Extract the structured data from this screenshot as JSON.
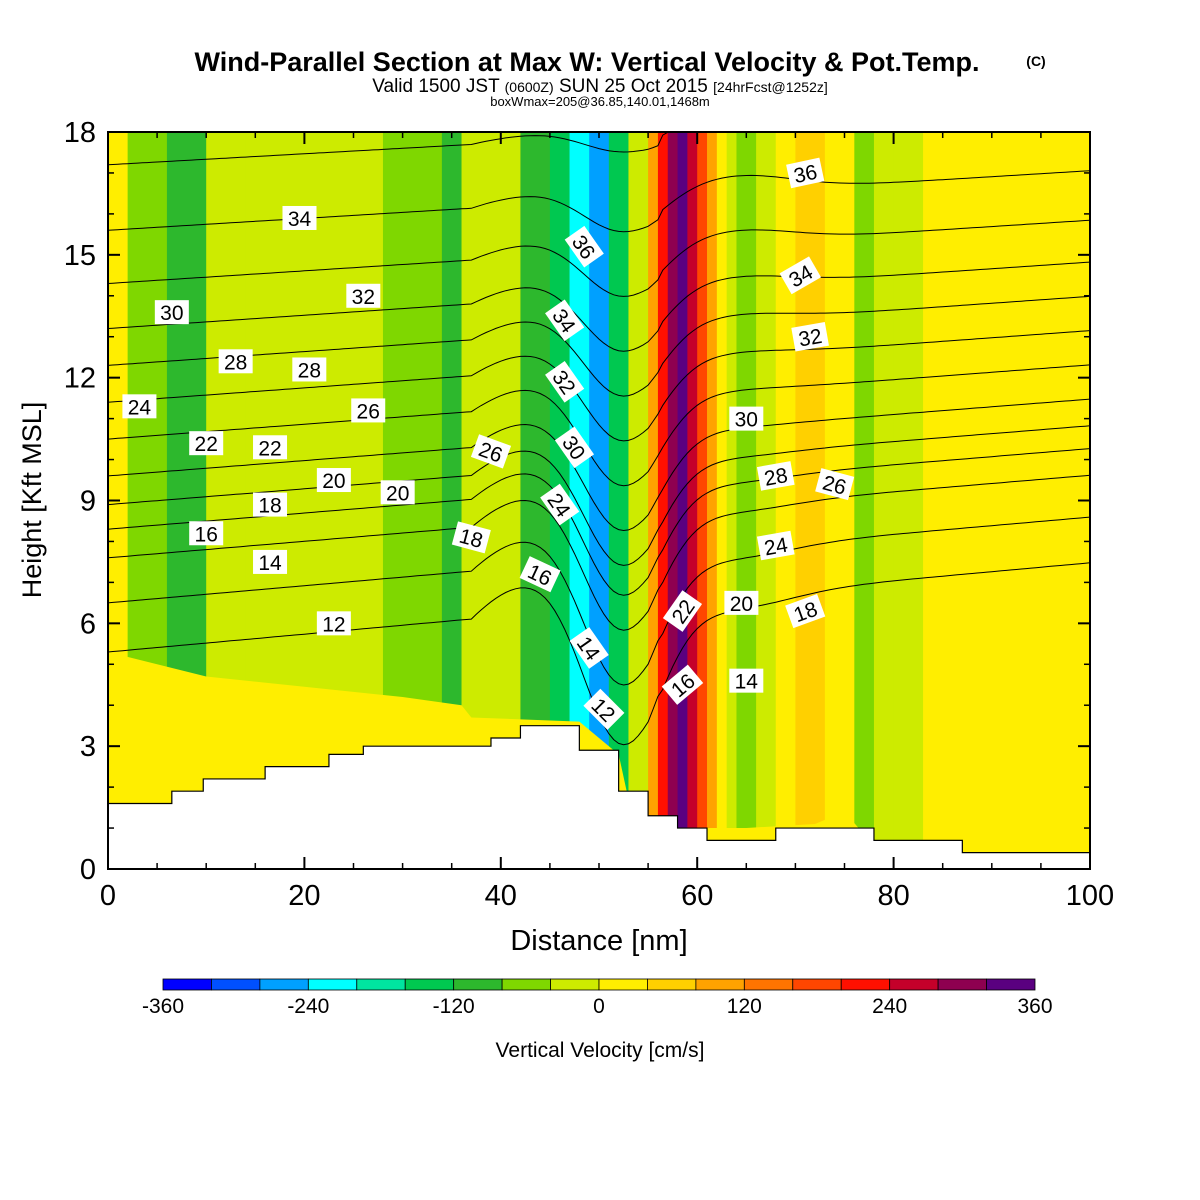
{
  "header": {
    "title": "Wind-Parallel Section at Max W: Vertical Velocity & Pot.Temp.",
    "copyright": "(C)",
    "valid": {
      "pre": "Valid 1500 JST",
      "utc": "(0600Z)",
      "date": "SUN 25 Oct 2015",
      "fcst": "[24hrFcst@1252z]"
    },
    "box": "boxWmax=205@36.85,140.01,1468m"
  },
  "chart_data": {
    "type": "heatmap",
    "xlabel": "Distance [nm]",
    "ylabel": "Height [Kft MSL]",
    "xlim": [
      0,
      100
    ],
    "ylim": [
      0,
      18
    ],
    "xticks": [
      "0",
      "20",
      "40",
      "60",
      "80",
      "100"
    ],
    "yticks": [
      "0",
      "3",
      "6",
      "9",
      "12",
      "15",
      "18"
    ],
    "colorbar": {
      "label": "Vertical Velocity [cm/s]",
      "levels": [
        -360,
        -320,
        -280,
        -240,
        -200,
        -160,
        -120,
        -80,
        -40,
        0,
        40,
        80,
        120,
        160,
        200,
        240,
        280,
        320,
        360
      ],
      "colors": [
        "#0000ff",
        "#0050ff",
        "#00a0ff",
        "#00ffff",
        "#00e5a0",
        "#00c850",
        "#2db82d",
        "#7fd700",
        "#cdeb00",
        "#ffee00",
        "#ffd000",
        "#ffa200",
        "#ff7400",
        "#ff4600",
        "#ff1000",
        "#c4002a",
        "#8e0050",
        "#5a0080"
      ],
      "ticks": [
        "-360",
        "-240",
        "-120",
        "0",
        "120",
        "240",
        "360"
      ]
    },
    "w_columns": [
      {
        "x0": 0,
        "x1": 2,
        "w": 10
      },
      {
        "x0": 2,
        "x1": 6,
        "w": -50
      },
      {
        "x0": 6,
        "x1": 10,
        "w": -90
      },
      {
        "x0": 10,
        "x1": 14,
        "w": -40
      },
      {
        "x0": 14,
        "x1": 28,
        "w": -20
      },
      {
        "x0": 28,
        "x1": 34,
        "w": -60
      },
      {
        "x0": 34,
        "x1": 36,
        "w": -90
      },
      {
        "x0": 36,
        "x1": 42,
        "w": -40
      },
      {
        "x0": 42,
        "x1": 45,
        "w": -100
      },
      {
        "x0": 45,
        "x1": 47,
        "w": -160
      },
      {
        "x0": 47,
        "x1": 49,
        "w": -230
      },
      {
        "x0": 49,
        "x1": 51,
        "w": -250
      },
      {
        "x0": 51,
        "x1": 53,
        "w": -150
      },
      {
        "x0": 53,
        "x1": 55,
        "w": -40
      },
      {
        "x0": 55,
        "x1": 56,
        "w": 80
      },
      {
        "x0": 56,
        "x1": 57,
        "w": 200
      },
      {
        "x0": 57,
        "x1": 58,
        "w": 280
      },
      {
        "x0": 58,
        "x1": 59,
        "w": 330
      },
      {
        "x0": 59,
        "x1": 60,
        "w": 260
      },
      {
        "x0": 60,
        "x1": 61,
        "w": 180
      },
      {
        "x0": 61,
        "x1": 62,
        "w": 110
      },
      {
        "x0": 62,
        "x1": 63,
        "w": 30
      },
      {
        "x0": 63,
        "x1": 64,
        "w": -30
      },
      {
        "x0": 64,
        "x1": 66,
        "w": -70
      },
      {
        "x0": 66,
        "x1": 68,
        "w": -10
      },
      {
        "x0": 68,
        "x1": 70,
        "w": 30
      },
      {
        "x0": 70,
        "x1": 73,
        "w": 70
      },
      {
        "x0": 73,
        "x1": 76,
        "w": 20
      },
      {
        "x0": 76,
        "x1": 78,
        "w": -60
      },
      {
        "x0": 78,
        "x1": 80,
        "w": -30
      },
      {
        "x0": 80,
        "x1": 83,
        "w": -10
      },
      {
        "x0": 83,
        "x1": 87,
        "w": 10
      },
      {
        "x0": 87,
        "x1": 93,
        "w": 20
      },
      {
        "x0": 93,
        "x1": 98,
        "w": 10
      },
      {
        "x0": 98,
        "x1": 100,
        "w": 30
      }
    ],
    "low_level_updraft": [
      [
        0,
        0
      ],
      [
        0,
        5.3
      ],
      [
        10,
        4.7
      ],
      [
        30,
        4.2
      ],
      [
        36,
        4.0
      ],
      [
        37,
        3.7
      ],
      [
        48,
        3.6
      ],
      [
        52,
        2.8
      ],
      [
        53,
        1.7
      ],
      [
        55,
        1.2
      ],
      [
        58,
        1.0
      ],
      [
        65,
        1.0
      ],
      [
        72,
        1.1
      ],
      [
        75,
        1.4
      ],
      [
        80,
        0
      ],
      [
        0,
        0
      ]
    ],
    "terrain": [
      [
        0,
        1.6
      ],
      [
        6.5,
        1.6
      ],
      [
        6.5,
        1.9
      ],
      [
        9.7,
        1.9
      ],
      [
        9.7,
        2.2
      ],
      [
        16,
        2.2
      ],
      [
        16,
        2.5
      ],
      [
        22.5,
        2.5
      ],
      [
        22.5,
        2.8
      ],
      [
        26,
        2.8
      ],
      [
        26,
        3.0
      ],
      [
        39,
        3.0
      ],
      [
        39,
        3.2
      ],
      [
        42,
        3.2
      ],
      [
        42,
        3.5
      ],
      [
        48,
        3.5
      ],
      [
        48,
        2.9
      ],
      [
        52,
        2.9
      ],
      [
        52,
        1.9
      ],
      [
        55,
        1.9
      ],
      [
        55,
        1.3
      ],
      [
        58,
        1.3
      ],
      [
        58,
        1.0
      ],
      [
        61,
        1.0
      ],
      [
        61,
        0.7
      ],
      [
        68,
        0.7
      ],
      [
        68,
        1.0
      ],
      [
        78,
        1.0
      ],
      [
        78,
        0.7
      ],
      [
        87,
        0.7
      ],
      [
        87,
        0.4
      ],
      [
        100,
        0.4
      ]
    ],
    "theta_contours": [
      {
        "label": "12",
        "y_left": 5.3
      },
      {
        "label": "14",
        "y_left": 6.5
      },
      {
        "label": "16",
        "y_left": 7.6
      },
      {
        "label": "18",
        "y_left": 8.3
      },
      {
        "label": "20",
        "y_left": 8.9
      },
      {
        "label": "22",
        "y_left": 9.6
      },
      {
        "label": "24",
        "y_left": 10.5
      },
      {
        "label": "26",
        "y_left": 11.4
      },
      {
        "label": "28",
        "y_left": 12.3
      },
      {
        "label": "30",
        "y_left": 13.2
      },
      {
        "label": "32",
        "y_left": 14.3
      },
      {
        "label": "34",
        "y_left": 15.6
      },
      {
        "label": "36",
        "y_left": 17.2
      }
    ],
    "contour_labels": [
      {
        "text": "34",
        "x": 19.5,
        "y": 15.9,
        "rot": 0
      },
      {
        "text": "32",
        "x": 26,
        "y": 14.0,
        "rot": 0
      },
      {
        "text": "30",
        "x": 6.5,
        "y": 13.6,
        "rot": 0
      },
      {
        "text": "28",
        "x": 13,
        "y": 12.4,
        "rot": 0
      },
      {
        "text": "28",
        "x": 20.5,
        "y": 12.2,
        "rot": 0
      },
      {
        "text": "26",
        "x": 26.5,
        "y": 11.2,
        "rot": 0
      },
      {
        "text": "24",
        "x": 3.2,
        "y": 11.3,
        "rot": 0
      },
      {
        "text": "22",
        "x": 10,
        "y": 10.4,
        "rot": 0
      },
      {
        "text": "22",
        "x": 16.5,
        "y": 10.3,
        "rot": 0
      },
      {
        "text": "26",
        "x": 39,
        "y": 10.2,
        "rot": 20
      },
      {
        "text": "20",
        "x": 23,
        "y": 9.5,
        "rot": 0
      },
      {
        "text": "20",
        "x": 29.5,
        "y": 9.2,
        "rot": 0
      },
      {
        "text": "18",
        "x": 16.5,
        "y": 8.9,
        "rot": 0
      },
      {
        "text": "18",
        "x": 37,
        "y": 8.1,
        "rot": 15
      },
      {
        "text": "16",
        "x": 10,
        "y": 8.2,
        "rot": 0
      },
      {
        "text": "14",
        "x": 16.5,
        "y": 7.5,
        "rot": 0
      },
      {
        "text": "16",
        "x": 44,
        "y": 7.2,
        "rot": 25
      },
      {
        "text": "12",
        "x": 23,
        "y": 6.0,
        "rot": 0
      },
      {
        "text": "36",
        "x": 48.5,
        "y": 15.2,
        "rot": 55
      },
      {
        "text": "34",
        "x": 46.5,
        "y": 13.4,
        "rot": 55
      },
      {
        "text": "32",
        "x": 46.5,
        "y": 11.9,
        "rot": 55
      },
      {
        "text": "30",
        "x": 47.5,
        "y": 10.3,
        "rot": 55
      },
      {
        "text": "24",
        "x": 46,
        "y": 8.9,
        "rot": 55
      },
      {
        "text": "14",
        "x": 49,
        "y": 5.4,
        "rot": 55
      },
      {
        "text": "12",
        "x": 50.5,
        "y": 3.9,
        "rot": 45
      },
      {
        "text": "36",
        "x": 71,
        "y": 17.0,
        "rot": -12
      },
      {
        "text": "34",
        "x": 70.5,
        "y": 14.5,
        "rot": -30
      },
      {
        "text": "32",
        "x": 71.5,
        "y": 13.0,
        "rot": -10
      },
      {
        "text": "30",
        "x": 65,
        "y": 11.0,
        "rot": 0
      },
      {
        "text": "28",
        "x": 68,
        "y": 9.6,
        "rot": -10
      },
      {
        "text": "26",
        "x": 74,
        "y": 9.4,
        "rot": 15
      },
      {
        "text": "24",
        "x": 68,
        "y": 7.9,
        "rot": -10
      },
      {
        "text": "22",
        "x": 58.5,
        "y": 6.3,
        "rot": -55
      },
      {
        "text": "20",
        "x": 64.5,
        "y": 6.5,
        "rot": 0
      },
      {
        "text": "18",
        "x": 71,
        "y": 6.3,
        "rot": -20
      },
      {
        "text": "16",
        "x": 58.5,
        "y": 4.5,
        "rot": -40
      },
      {
        "text": "14",
        "x": 65,
        "y": 4.6,
        "rot": 0
      }
    ]
  }
}
